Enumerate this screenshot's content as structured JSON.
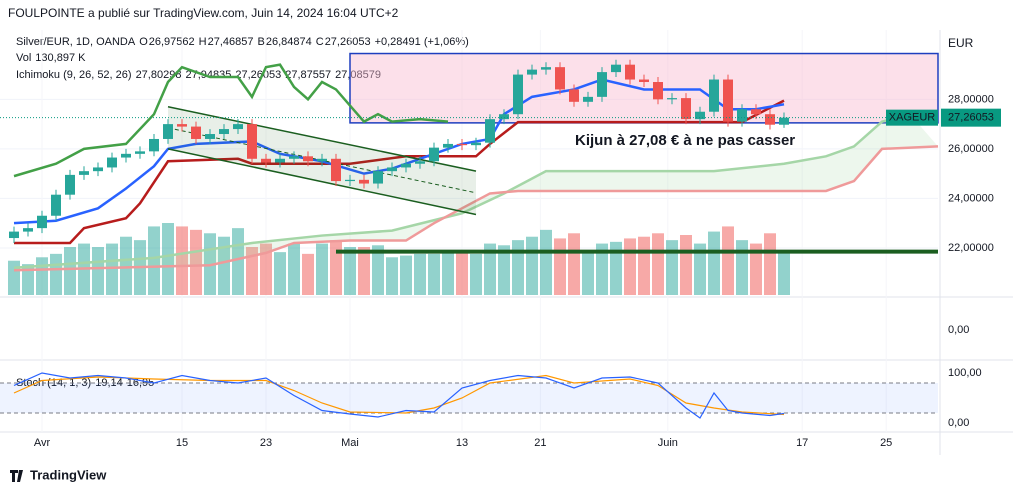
{
  "chart_data": {
    "type": "candlestick",
    "header": "FOULPOINTE a publié sur TradingView.com, Juin 14, 2024 16:04 UTC+2",
    "symbol": "Silver/EUR, 1D, OANDA",
    "ohlc_legend": [
      "O",
      "26,97562",
      "H",
      "27,46857",
      "B",
      "26,84874",
      "C",
      "27,26053"
    ],
    "change": "+0,28491 (+1,06%)",
    "vol_legend": [
      "Vol",
      "130,897 K"
    ],
    "ichimoku_legend": {
      "name": "Ichimoku (9, 26, 52, 26)",
      "items": [
        {
          "label": "27,80298",
          "color": "#2962ff"
        },
        {
          "label": "27,94835",
          "color": "#b71c1c"
        },
        {
          "label": "27,26053",
          "color": "#43a047"
        },
        {
          "label": "27,87557",
          "color": "#a5d6a7"
        },
        {
          "label": "27,08579",
          "color": "#ef9a9a"
        }
      ]
    },
    "stoch_legend": {
      "name": "Stoch (14, 1, 3)",
      "items": [
        {
          "label": "19,14",
          "color": "#2962ff"
        },
        {
          "label": "16,95",
          "color": "#ff9800"
        }
      ]
    },
    "currency": "EUR",
    "brand": "TradingView",
    "annotation": "Kijun à 27,08 € à ne pas casser",
    "price_tag": {
      "symbol": "XAGEUR",
      "label": "27,26053",
      "value": 27.26053,
      "color": "#089981"
    },
    "x": [
      0,
      1,
      2,
      3,
      4,
      5,
      6,
      7,
      8,
      9,
      10,
      11,
      12,
      13,
      14,
      15,
      16,
      17,
      18,
      19,
      20,
      21,
      22,
      23,
      24,
      25,
      26,
      27,
      28,
      29,
      30,
      31,
      32,
      33,
      34,
      35,
      36,
      37,
      38,
      39,
      40,
      41,
      42,
      43,
      44,
      45,
      46,
      47,
      48,
      49,
      50,
      51,
      52,
      53,
      54,
      55
    ],
    "open": [
      22.4,
      22.66,
      22.8,
      23.3,
      24.15,
      24.95,
      25.1,
      25.25,
      25.65,
      25.8,
      25.9,
      26.4,
      27.0,
      26.9,
      26.4,
      26.6,
      26.8,
      27.0,
      25.6,
      25.45,
      25.6,
      25.7,
      25.5,
      25.6,
      24.7,
      24.75,
      24.6,
      25.1,
      25.25,
      25.4,
      25.5,
      26.05,
      26.2,
      26.15,
      26.25,
      27.2,
      27.4,
      29.0,
      29.2,
      29.3,
      28.4,
      27.9,
      28.1,
      29.1,
      29.4,
      28.8,
      28.7,
      28.0,
      28.05,
      27.2,
      27.5,
      28.8,
      27.1,
      27.6,
      27.4,
      26.97562
    ],
    "high": [
      22.86,
      23.0,
      23.5,
      24.35,
      25.15,
      25.3,
      25.45,
      25.85,
      26.0,
      26.1,
      26.6,
      27.2,
      27.2,
      27.1,
      26.8,
      27.0,
      27.2,
      27.2,
      25.8,
      25.8,
      25.9,
      25.9,
      25.8,
      25.8,
      24.95,
      24.95,
      25.3,
      25.45,
      25.6,
      25.7,
      26.25,
      26.4,
      26.4,
      26.45,
      27.4,
      27.6,
      29.2,
      29.4,
      29.5,
      29.5,
      28.6,
      28.3,
      29.3,
      29.6,
      29.6,
      29.0,
      28.9,
      28.25,
      28.25,
      27.7,
      29.0,
      29.0,
      27.8,
      27.8,
      27.6,
      27.46857
    ],
    "low": [
      22.2,
      22.46,
      22.6,
      23.1,
      23.95,
      24.75,
      24.9,
      25.05,
      25.45,
      25.6,
      25.7,
      26.2,
      26.7,
      26.2,
      26.2,
      26.4,
      26.6,
      25.4,
      25.25,
      25.25,
      25.4,
      25.3,
      25.3,
      24.5,
      24.5,
      24.4,
      24.4,
      24.9,
      25.05,
      25.2,
      25.3,
      25.85,
      25.95,
      25.95,
      26.05,
      27.0,
      27.2,
      28.8,
      29.0,
      28.2,
      27.7,
      27.7,
      27.9,
      28.9,
      28.6,
      28.5,
      27.8,
      27.8,
      27.0,
      27.0,
      27.3,
      26.9,
      26.9,
      27.2,
      26.78,
      26.84874
    ],
    "close": [
      22.66,
      22.8,
      23.3,
      24.15,
      24.95,
      25.1,
      25.25,
      25.65,
      25.8,
      25.9,
      26.4,
      27.0,
      26.9,
      26.4,
      26.6,
      26.8,
      27.0,
      25.6,
      25.45,
      25.6,
      25.7,
      25.5,
      25.6,
      24.7,
      24.75,
      24.6,
      25.1,
      25.25,
      25.4,
      25.5,
      26.05,
      26.2,
      26.15,
      26.25,
      27.2,
      27.4,
      29.0,
      29.2,
      29.3,
      28.4,
      27.9,
      28.1,
      29.1,
      29.4,
      28.8,
      28.7,
      28.0,
      28.05,
      27.2,
      27.5,
      28.8,
      27.1,
      27.6,
      27.4,
      26.97562,
      27.26053
    ],
    "volume": [
      100,
      90,
      110,
      120,
      140,
      150,
      140,
      150,
      170,
      160,
      200,
      210,
      200,
      190,
      180,
      170,
      195,
      140,
      150,
      125,
      150,
      120,
      150,
      160,
      140,
      140,
      145,
      110,
      115,
      120,
      120,
      125,
      130,
      120,
      150,
      145,
      160,
      170,
      190,
      165,
      180,
      130,
      150,
      155,
      165,
      170,
      180,
      160,
      175,
      150,
      185,
      200,
      160,
      150,
      180,
      130.897
    ],
    "up_color": "#26a69a",
    "down_color": "#ef5350",
    "lines": [
      {
        "color": "#a5d6a7",
        "x": [
          0,
          10,
          17,
          22,
          27,
          32,
          35,
          38,
          42,
          50,
          55,
          58,
          60,
          62,
          64
        ],
        "values": [
          21.2,
          21.6,
          22.2,
          22.5,
          22.7,
          23.4,
          24.2,
          25.1,
          25.1,
          25.1,
          25.4,
          25.7,
          26.1,
          27.1,
          27.4
        ]
      },
      {
        "color": "#ef9a9a",
        "x": [
          0,
          14,
          18,
          20,
          24,
          28,
          30,
          34,
          36,
          58,
          60,
          62,
          66
        ],
        "values": [
          21.1,
          21.3,
          21.8,
          22.2,
          22.3,
          22.3,
          23.0,
          24.2,
          24.3,
          24.3,
          24.7,
          26.0,
          26.1
        ]
      },
      {
        "color": "#43a047",
        "x": [
          0,
          3,
          5,
          8,
          10,
          11,
          12,
          14,
          16,
          17,
          18,
          19,
          20,
          21,
          22,
          23,
          25,
          26,
          27,
          29,
          31
        ],
        "values": [
          24.9,
          25.4,
          26.0,
          26.2,
          27.4,
          28.7,
          29.3,
          28.9,
          28.9,
          28.1,
          29.3,
          29.4,
          28.5,
          28.0,
          28.7,
          28.4,
          27.1,
          27.4,
          27.1,
          27.2,
          27.1
        ]
      },
      {
        "color": "#b71c1c",
        "x": [
          0,
          4,
          5,
          8,
          9,
          11,
          16,
          17,
          24,
          28,
          33,
          34,
          36,
          52,
          55
        ],
        "values": [
          22.2,
          22.2,
          22.8,
          23.2,
          23.8,
          25.5,
          25.6,
          25.4,
          25.4,
          25.7,
          25.7,
          26.2,
          27.08,
          27.08,
          27.95
        ]
      },
      {
        "color": "#2962ff",
        "x": [
          0,
          3,
          6,
          8,
          10,
          11,
          13,
          17,
          19,
          22,
          25,
          27,
          29,
          32,
          34,
          35,
          37,
          40,
          42,
          45,
          49,
          50,
          51,
          53,
          55
        ],
        "values": [
          23.0,
          23.1,
          23.6,
          24.4,
          25.3,
          26.0,
          26.2,
          26.3,
          25.8,
          25.5,
          25.0,
          25.2,
          25.6,
          26.2,
          26.4,
          27.4,
          28.1,
          28.4,
          28.8,
          28.4,
          28.4,
          28.0,
          27.6,
          27.6,
          27.8
        ]
      }
    ],
    "rectangle": {
      "x": [
        24,
        66
      ],
      "y": [
        29.85,
        27.05
      ],
      "color": "#1e3fbf"
    },
    "channel": [
      {
        "x": [
          11,
          33
        ],
        "y": [
          27.7,
          25.1
        ]
      },
      {
        "x": [
          11,
          33
        ],
        "y": [
          26.0,
          23.35
        ]
      }
    ],
    "support": {
      "x": [
        23,
        66
      ],
      "y": 21.85,
      "color": "#1b5e20"
    },
    "xlim": [
      -1,
      66
    ],
    "ylim": [
      20.1,
      30.8
    ],
    "xticks": [
      {
        "value": 2,
        "label": "Avr"
      },
      {
        "value": 12,
        "label": "15"
      },
      {
        "value": 18,
        "label": "23"
      },
      {
        "value": 24,
        "label": "Mai"
      },
      {
        "value": 32,
        "label": "13"
      },
      {
        "value": 37.6,
        "label": "21"
      },
      {
        "value": 46.7,
        "label": "Juin"
      },
      {
        "value": 56.3,
        "label": "17"
      },
      {
        "value": 62.3,
        "label": "25"
      }
    ],
    "yticks": [
      {
        "value": 28,
        "label": "28,00000"
      },
      {
        "value": 26,
        "label": "26,00000"
      },
      {
        "value": 24,
        "label": "24,00000"
      },
      {
        "value": 22,
        "label": "22,00000"
      }
    ],
    "mid_yticks": [
      {
        "value": 0,
        "label": "0,00"
      }
    ],
    "stoch": {
      "ylim": [
        -14,
        126
      ],
      "yticks": [
        {
          "value": 100,
          "label": "100,00"
        },
        {
          "value": 0,
          "label": "0,00"
        }
      ],
      "bands": [
        20,
        80
      ],
      "k": {
        "color": "#2962ff",
        "x": [
          0,
          2,
          4,
          6,
          8,
          10,
          12,
          14,
          16,
          18,
          20,
          22,
          24,
          26,
          28,
          30,
          32,
          34,
          36,
          38,
          40,
          42,
          44,
          46,
          48,
          49,
          50,
          51,
          52,
          54,
          55
        ],
        "values": [
          75,
          100,
          90,
          95,
          90,
          80,
          95,
          85,
          80,
          90,
          55,
          25,
          18,
          12,
          25,
          22,
          70,
          85,
          95,
          90,
          70,
          90,
          92,
          80,
          30,
          10,
          60,
          25,
          20,
          15,
          19.14
        ]
      },
      "d": {
        "color": "#ff9800",
        "x": [
          0,
          2,
          6,
          10,
          14,
          18,
          20,
          22,
          24,
          28,
          30,
          32,
          34,
          38,
          40,
          44,
          46,
          48,
          50,
          52,
          55
        ],
        "values": [
          60,
          85,
          92,
          88,
          85,
          85,
          65,
          40,
          22,
          20,
          30,
          50,
          80,
          95,
          80,
          88,
          75,
          40,
          30,
          22,
          16.95
        ]
      }
    }
  }
}
